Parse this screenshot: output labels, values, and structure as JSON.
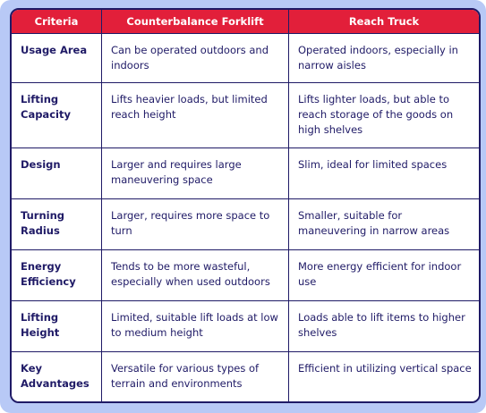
{
  "table": {
    "headers": [
      "Criteria",
      "Counterbalance Forklift",
      "Reach Truck"
    ],
    "rows": [
      {
        "criteria": "Usage Area",
        "forklift": "Can be operated outdoors and indoors",
        "reach": "Operated indoors, especially in narrow aisles"
      },
      {
        "criteria": "Lifting Capacity",
        "forklift": "Lifts heavier loads, but limited reach height",
        "reach": "Lifts lighter loads, but able to reach storage of the goods on high shelves"
      },
      {
        "criteria": "Design",
        "forklift": "Larger and requires large maneuvering space",
        "reach": "Slim, ideal for limited spaces"
      },
      {
        "criteria": "Turning Radius",
        "forklift": "Larger, requires more space to turn",
        "reach": "Smaller, suitable for maneuvering in narrow areas"
      },
      {
        "criteria": "Energy Efficiency",
        "forklift": "Tends to be more wasteful, especially when used outdoors",
        "reach": "More energy efficient for indoor use"
      },
      {
        "criteria": "Lifting Height",
        "forklift": "Limited, suitable lift loads at low to medium height",
        "reach": "Loads able to lift items to higher shelves"
      },
      {
        "criteria": "Key Advantages",
        "forklift": "Versatile for various types of terrain and environments",
        "reach": "Efficient in utilizing vertical space"
      }
    ]
  },
  "colors": {
    "header_bg": "#e21f3a",
    "header_text": "#ffffff",
    "text": "#1f1a66",
    "border": "#1f1a66",
    "frame": "#b8c9f6"
  }
}
